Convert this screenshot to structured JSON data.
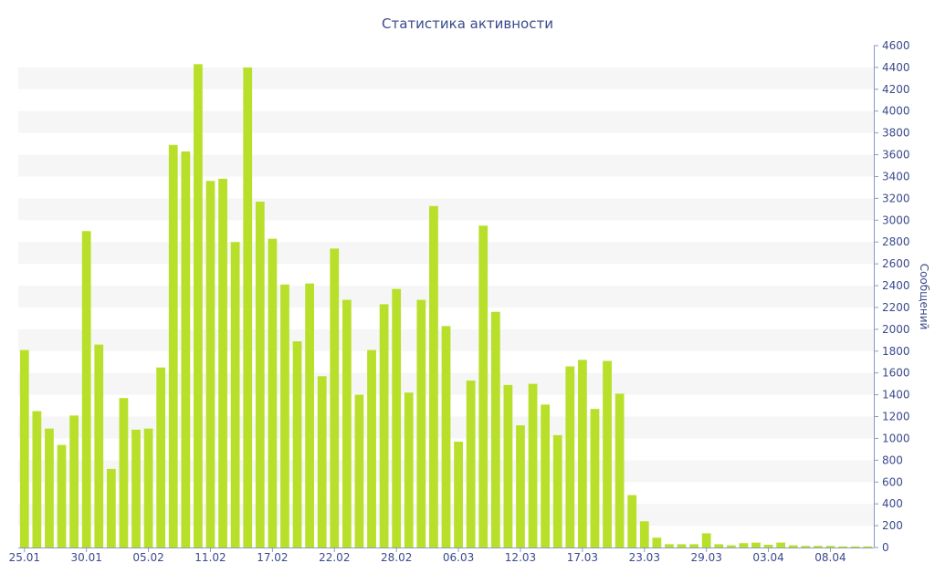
{
  "chart_data": {
    "type": "bar",
    "title": "Статистика активности",
    "ylabel": "Сообщений",
    "xlabel": "",
    "ylim": [
      0,
      4600
    ],
    "y_ticks": [
      0,
      200,
      400,
      600,
      800,
      1000,
      1200,
      1400,
      1600,
      1800,
      2000,
      2200,
      2400,
      2600,
      2800,
      3000,
      3200,
      3400,
      3600,
      3800,
      4000,
      4200,
      4400,
      4600
    ],
    "y_axis_side": "right",
    "grid": "alternating horizontal bands",
    "bar_color": "#b8e02b",
    "band_color": "#f6f6f6",
    "text_color": "#3a4a8c",
    "x_tick_labels": [
      {
        "index": 0,
        "label": "25.01"
      },
      {
        "index": 5,
        "label": "30.01"
      },
      {
        "index": 10,
        "label": "05.02"
      },
      {
        "index": 15,
        "label": "11.02"
      },
      {
        "index": 20,
        "label": "17.02"
      },
      {
        "index": 25,
        "label": "22.02"
      },
      {
        "index": 30,
        "label": "28.02"
      },
      {
        "index": 35,
        "label": "06.03"
      },
      {
        "index": 40,
        "label": "12.03"
      },
      {
        "index": 45,
        "label": "17.03"
      },
      {
        "index": 50,
        "label": "23.03"
      },
      {
        "index": 55,
        "label": "29.03"
      },
      {
        "index": 60,
        "label": "03.04"
      },
      {
        "index": 65,
        "label": "08.04"
      }
    ],
    "values": [
      1810,
      1250,
      1090,
      940,
      1210,
      2900,
      1860,
      720,
      1370,
      1080,
      1090,
      1650,
      3690,
      3630,
      4430,
      3360,
      3380,
      2800,
      4400,
      3170,
      2830,
      2410,
      1890,
      2420,
      1570,
      2740,
      2270,
      1400,
      1810,
      2230,
      2370,
      1420,
      2270,
      3130,
      2030,
      970,
      1530,
      2950,
      2160,
      1490,
      1120,
      1500,
      1310,
      1030,
      1660,
      1720,
      1270,
      1710,
      1410,
      480,
      240,
      90,
      30,
      30,
      30,
      130,
      30,
      20,
      40,
      45,
      25,
      45,
      20,
      15,
      15,
      15,
      10,
      10,
      10
    ]
  }
}
